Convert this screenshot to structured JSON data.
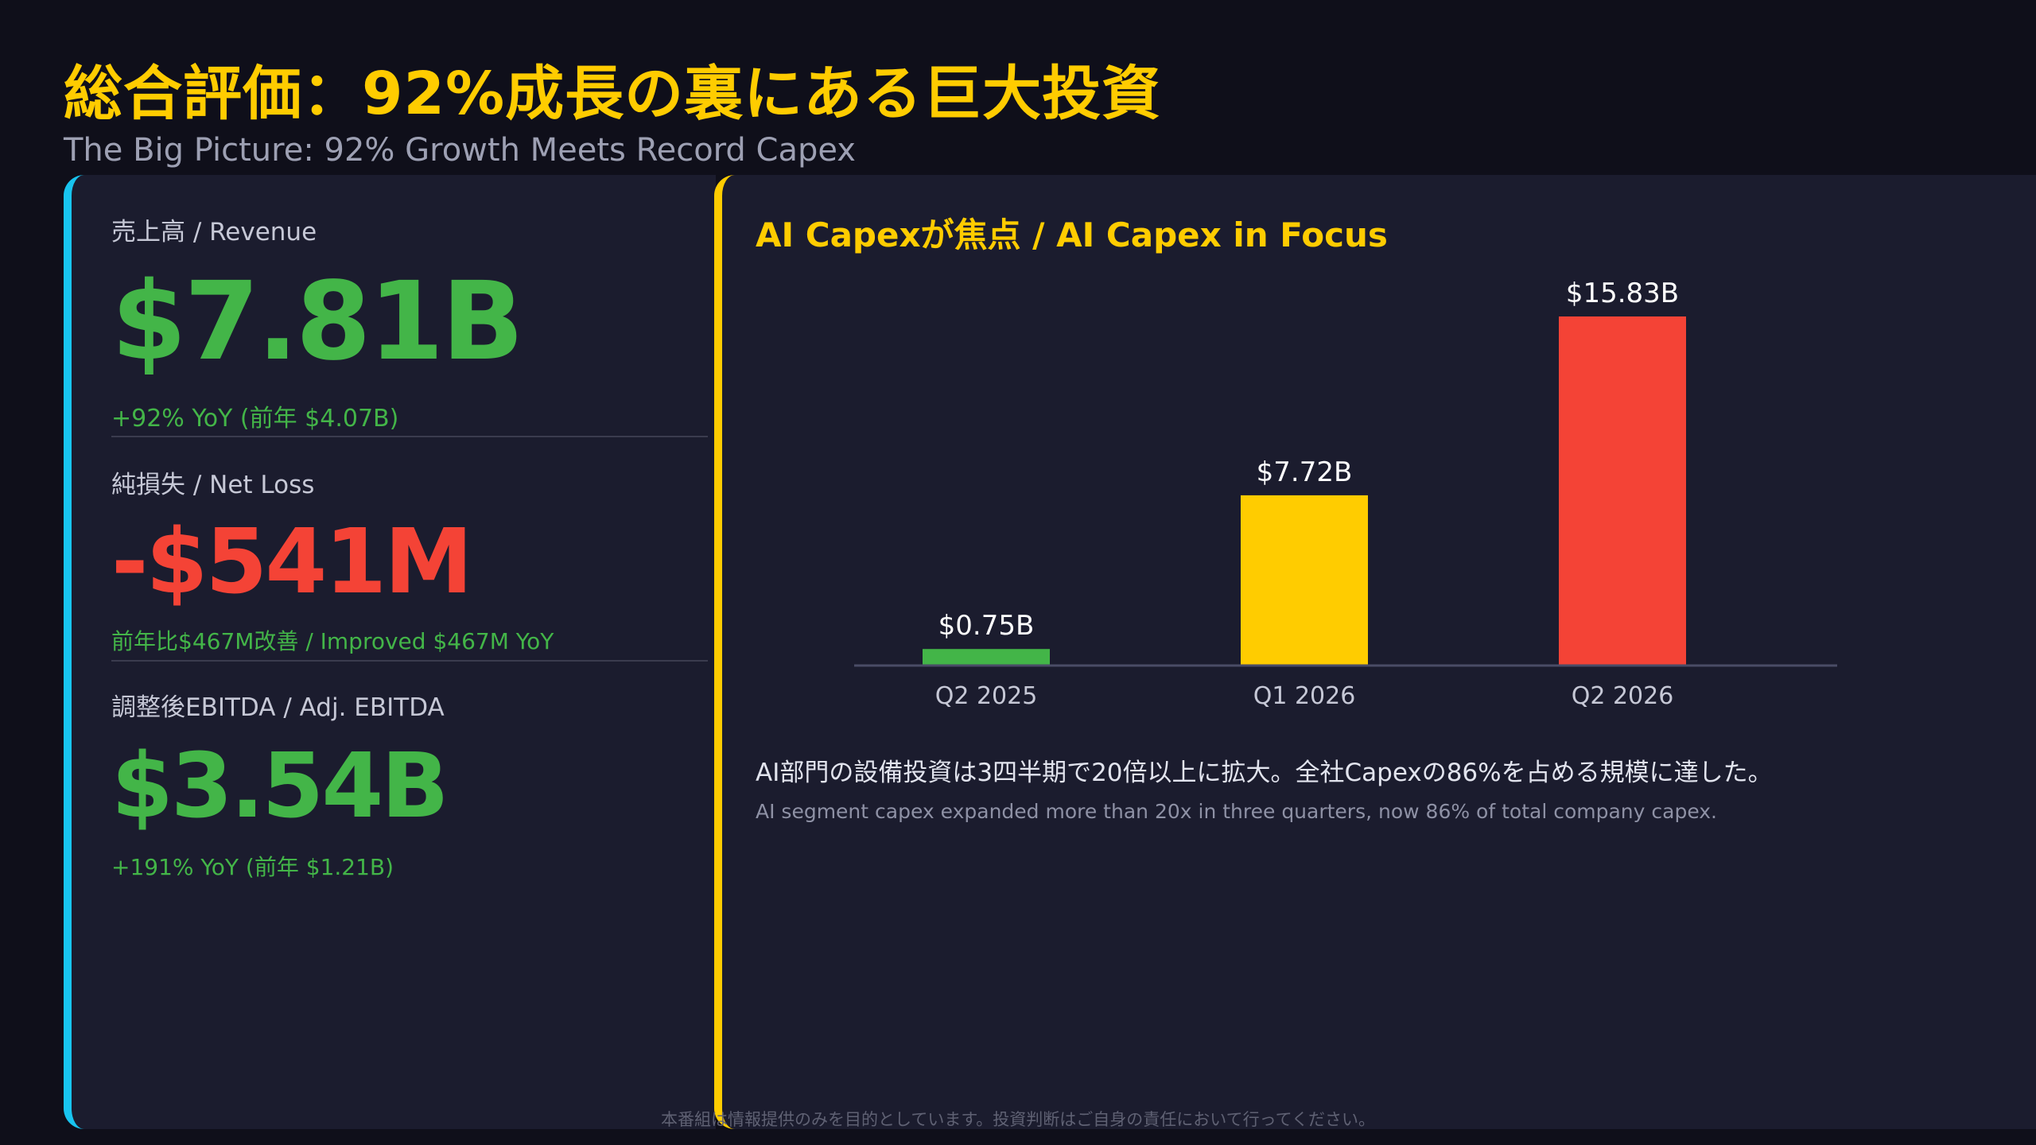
{
  "header": {
    "title": "総合評価：92%成長の裏にある巨大投資",
    "subtitle": "The Big Picture: 92% Growth Meets Record Capex"
  },
  "metrics": {
    "revenue": {
      "label": "売上高 / Revenue",
      "value": "$7.81B",
      "sub": "+92% YoY (前年 $4.07B)"
    },
    "net_loss": {
      "label": "純損失 / Net Loss",
      "value": "-$541M",
      "sub": "前年比$467M改善 / Improved $467M YoY"
    },
    "ebitda": {
      "label": "調整後EBITDA / Adj. EBITDA",
      "value": "$3.54B",
      "sub": "+191% YoY (前年 $1.21B)"
    }
  },
  "chart_panel": {
    "title": "AI Capexが焦点 / AI Capex in Focus",
    "desc_jp": "AI部門の設備投資は3四半期で20倍以上に拡大。全社Capexの86%を占める規模に達した。",
    "desc_en": "AI segment capex expanded more than 20x in three quarters, now 86% of total company capex."
  },
  "chart_data": {
    "type": "bar",
    "categories": [
      "Q2 2025",
      "Q1 2026",
      "Q2 2026"
    ],
    "values": [
      0.75,
      7.72,
      15.83
    ],
    "data_labels": [
      "$0.75B",
      "$7.72B",
      "$15.83B"
    ],
    "colors": [
      "#43b548",
      "#ffcc00",
      "#f44336"
    ],
    "title": "AI Capexが焦点 / AI Capex in Focus",
    "xlabel": "",
    "ylabel": "",
    "ylim": [
      0,
      15.83
    ],
    "grid": false,
    "legend": "none"
  },
  "footer": {
    "disclaimer": "本番組は情報提供のみを目的としています。投資判断はご自身の責任において行ってください。"
  },
  "colors": {
    "accent_yellow": "#ffcc00",
    "accent_cyan": "#18c4ef",
    "positive_green": "#43b548",
    "negative_red": "#f44336",
    "background": "#0f0f1a",
    "panel": "#1b1c2e"
  }
}
